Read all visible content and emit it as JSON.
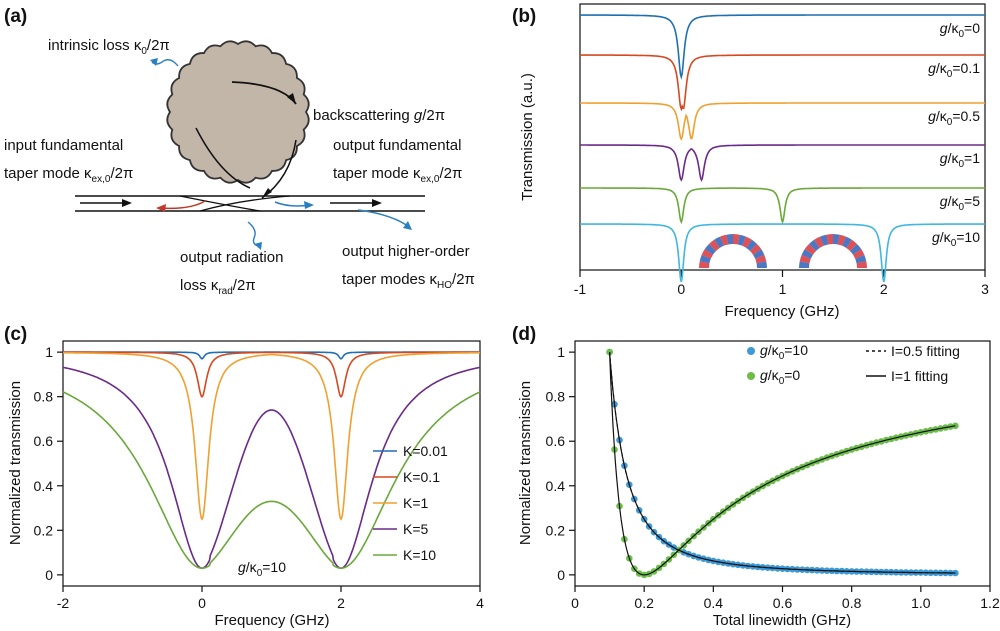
{
  "panels": {
    "a": {
      "label": "(a)",
      "annotations": {
        "intrinsic_loss": "intrinsic loss κ0/2π",
        "backscattering": "backscattering g/2π",
        "input_line1": "input fundamental",
        "input_line2": "taper mode  κex,0/2π",
        "output_line1": "output fundamental",
        "output_line2": "taper mode κex,0/2π",
        "radiation_line1": "output radiation",
        "radiation_line2": "loss κrad/2π",
        "higher_line1": "output higher-order",
        "higher_line2": "taper modes κHO/2π"
      }
    },
    "b": {
      "label": "(b)"
    },
    "c": {
      "label": "(c)"
    },
    "d": {
      "label": "(d)"
    }
  },
  "chart_data": [
    {
      "type": "line",
      "panel": "b",
      "xlabel": "Frequency (GHz)",
      "ylabel": "Transmission (a.u.)",
      "xlim": [
        -1,
        3
      ],
      "xticks": [
        "-1",
        "0",
        "1",
        "2",
        "3"
      ],
      "series": [
        {
          "name": "g/κ0=0",
          "g": 0,
          "color": "#1f6fb4"
        },
        {
          "name": "g/κ0=0.1",
          "g": 0.1,
          "color": "#d6491f"
        },
        {
          "name": "g/κ0=0.5",
          "g": 0.5,
          "color": "#f0a030"
        },
        {
          "name": "g/κ0=1",
          "g": 1,
          "color": "#6a2a8a"
        },
        {
          "name": "g/κ0=5",
          "g": 5,
          "color": "#6aa83a"
        },
        {
          "name": "g/κ0=10",
          "g": 10,
          "color": "#40b6e0"
        }
      ]
    },
    {
      "type": "line",
      "panel": "c",
      "xlabel": "Frequency (GHz)",
      "ylabel": "Normalized transmission",
      "xlim": [
        -2,
        4
      ],
      "ylim": [
        -0.05,
        1.05
      ],
      "xticks": [
        "-2",
        "0",
        "2",
        "4"
      ],
      "yticks": [
        "0",
        "0.2",
        "0.4",
        "0.6",
        "0.8",
        "1"
      ],
      "annotation": "g/κ0=10",
      "series": [
        {
          "name": "K=0.01",
          "K": 0.01,
          "color": "#1f6fb4"
        },
        {
          "name": "K=0.1",
          "K": 0.1,
          "color": "#d6491f"
        },
        {
          "name": "K=1",
          "K": 1,
          "color": "#f0a030"
        },
        {
          "name": "K=5",
          "K": 5,
          "color": "#6a2a8a"
        },
        {
          "name": "K=10",
          "K": 10,
          "color": "#6aa83a"
        }
      ]
    },
    {
      "type": "scatter",
      "panel": "d",
      "xlabel": "Total linewidth (GHz)",
      "ylabel": "Normalized transmission",
      "xlim": [
        0,
        1.2
      ],
      "ylim": [
        -0.05,
        1.05
      ],
      "xticks": [
        "0",
        "0.2",
        "0.4",
        "0.6",
        "0.8",
        "1.0",
        "1.2"
      ],
      "yticks": [
        "0",
        "0.2",
        "0.4",
        "0.6",
        "0.8",
        "1"
      ],
      "series": [
        {
          "name": "g/κ0=10",
          "color": "#3d9ad8",
          "kind": "points",
          "x": [
            0.1,
            0.12,
            0.15,
            0.2,
            0.25,
            0.3,
            0.4,
            0.5,
            0.6,
            0.7,
            0.8,
            0.9,
            1.0,
            1.1
          ],
          "y": [
            1.0,
            0.7,
            0.44,
            0.24,
            0.15,
            0.1,
            0.05,
            0.035,
            0.025,
            0.02,
            0.015,
            0.012,
            0.01,
            0.01
          ]
        },
        {
          "name": "g/κ0=0",
          "color": "#6cbd4a",
          "kind": "points",
          "x": [
            0.1,
            0.12,
            0.15,
            0.2,
            0.25,
            0.3,
            0.4,
            0.5,
            0.6,
            0.7,
            0.8,
            0.9,
            1.0,
            1.1
          ],
          "y": [
            1.0,
            0.45,
            0.11,
            0.0,
            0.04,
            0.11,
            0.25,
            0.36,
            0.44,
            0.51,
            0.56,
            0.6,
            0.64,
            0.67
          ]
        },
        {
          "name": "I=0.5 fitting",
          "kind": "line",
          "dash": true
        },
        {
          "name": "I=1 fitting",
          "kind": "line",
          "dash": false
        }
      ]
    }
  ]
}
